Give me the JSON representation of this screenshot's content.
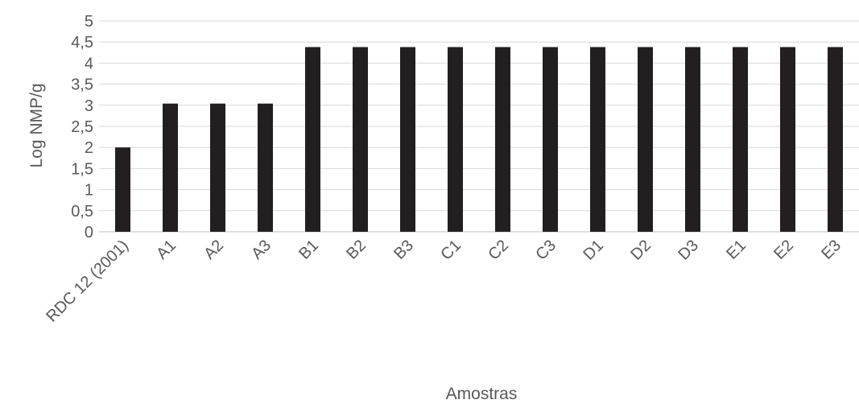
{
  "chart_data": {
    "type": "bar",
    "xlabel": "Amostras",
    "ylabel": "Log NMP/g",
    "ylim": [
      0,
      5
    ],
    "y_ticks": [
      "0",
      "0,5",
      "1",
      "1,5",
      "2",
      "2,5",
      "3",
      "3,5",
      "4",
      "4,5",
      "5"
    ],
    "categories": [
      "RDC 12 (2001)",
      "A1",
      "A2",
      "A3",
      "B1",
      "B2",
      "B3",
      "C1",
      "C2",
      "C3",
      "D1",
      "D2",
      "D3",
      "E1",
      "E2",
      "E3"
    ],
    "values": [
      2,
      3.04,
      3.04,
      3.04,
      4.38,
      4.38,
      4.38,
      4.38,
      4.38,
      4.38,
      4.38,
      4.38,
      4.38,
      4.38,
      4.38,
      4.38
    ],
    "grid": true,
    "legend": "none",
    "colors": {
      "bar": "#231f20",
      "grid": "#d9d9d9",
      "text": "#595959"
    }
  }
}
